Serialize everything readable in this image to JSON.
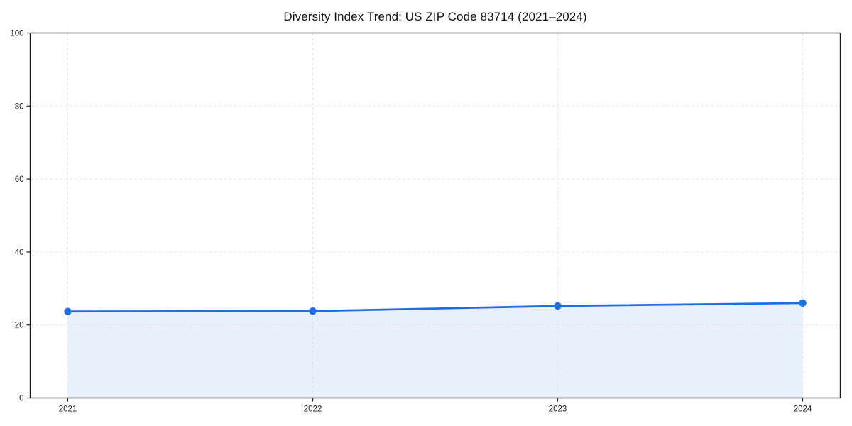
{
  "chart_data": {
    "type": "line",
    "title": "Diversity Index Trend: US ZIP Code 83714 (2021–2024)",
    "xlabel": "",
    "ylabel": "",
    "x": [
      "2021",
      "2022",
      "2023",
      "2024"
    ],
    "series": [
      {
        "name": "Diversity Index",
        "values": [
          23.7,
          23.8,
          25.2,
          26.0
        ]
      }
    ],
    "ylim": [
      0,
      100
    ],
    "yticks": [
      0,
      20,
      40,
      60,
      80,
      100
    ],
    "grid": true,
    "grid_style": "dashed",
    "legend": false,
    "area_fill": true,
    "marker": "circle",
    "colors": {
      "line": "#1f6fe0",
      "marker": "#1f6fe0",
      "fill": "#e8f0fb",
      "grid": "#e4e4e4",
      "axis": "#1a1a1a",
      "tick_text": "#1a1a1a",
      "title_text": "#111111",
      "background": "#ffffff"
    }
  }
}
